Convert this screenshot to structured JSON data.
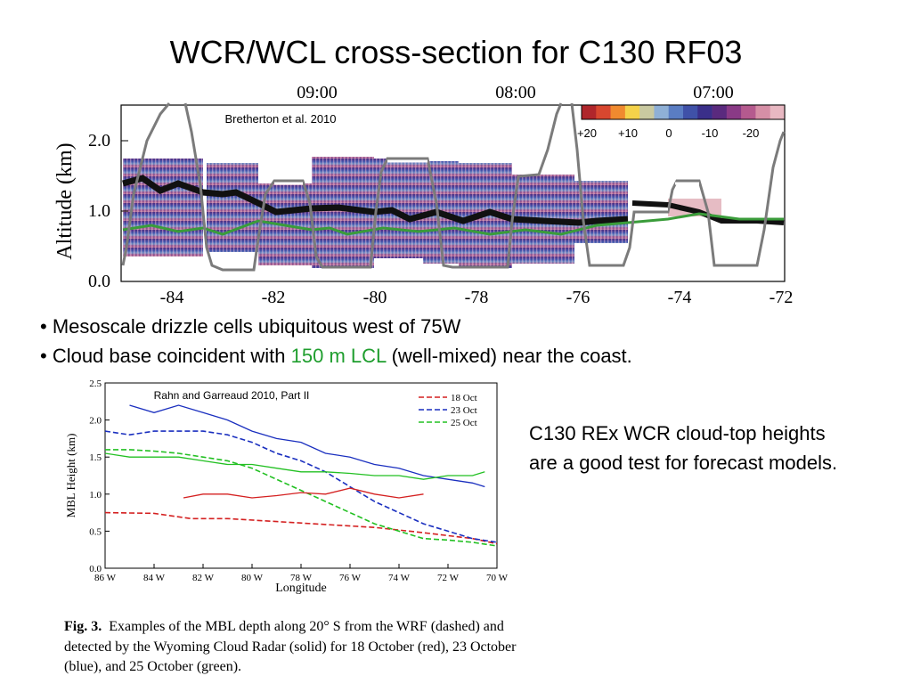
{
  "slide": {
    "title": "WCR/WCL cross-section for C130 RF03",
    "bullets": [
      {
        "prefix": "• Mesoscale drizzle cells ubiquitous west of 75W",
        "highlight": "",
        "suffix": ""
      },
      {
        "prefix": "• Cloud base coincident with ",
        "highlight": "150 m LCL",
        "suffix": " (well-mixed) near the coast."
      }
    ],
    "side_note": "C130 REx WCR cloud-top heights are a good test for forecast models.",
    "highlight_color": "#1f9e2e"
  },
  "figure_top": {
    "credit": "Bretherton et al. 2010",
    "ylabel": "Altitude (km)",
    "time_labels": [
      "09:00",
      "08:00",
      "07:00"
    ],
    "y_ticks": [
      "0.0",
      "1.0",
      "2.0"
    ],
    "x_ticks": [
      "-84",
      "-82",
      "-80",
      "-78",
      "-76",
      "-74",
      "-72"
    ],
    "colorbar_labels": [
      "+20",
      "+10",
      "0",
      "-10",
      "-20"
    ],
    "colorbar_colors": [
      "#b0262b",
      "#d8472f",
      "#f08a2f",
      "#f4d24a",
      "#c9c9a0",
      "#8fb0d6",
      "#5a7dc3",
      "#3f51a8",
      "#3a2f8a",
      "#5a2a7e",
      "#8a3a86",
      "#b55a8e",
      "#d68fa6",
      "#e8b8c2"
    ]
  },
  "figure_bottom": {
    "credit": "Rahn and Garreaud 2010, Part II",
    "ylabel": "MBL Height (km)",
    "xlabel": "Longitude",
    "y_ticks": [
      "0.0",
      "0.5",
      "1.0",
      "1.5",
      "2.0",
      "2.5"
    ],
    "x_ticks": [
      "86 W",
      "84 W",
      "82 W",
      "80 W",
      "78 W",
      "76 W",
      "74 W",
      "72 W",
      "70 W"
    ],
    "legend": [
      {
        "label": "18 Oct",
        "color": "#d42020"
      },
      {
        "label": "23 Oct",
        "color": "#1a2fbf"
      },
      {
        "label": "25 Oct",
        "color": "#22c022"
      }
    ]
  },
  "chart_data": {
    "type": "line",
    "xlabel": "Longitude",
    "ylabel": "MBL Height (km)",
    "xlim": [
      -86,
      -70
    ],
    "ylim": [
      0,
      2.5
    ],
    "series": [
      {
        "name": "18 Oct",
        "style": "dashed",
        "x": [
          -86,
          -84,
          -82.5,
          -81,
          -79,
          -77,
          -75,
          -73,
          -71,
          -70
        ],
        "values": [
          0.75,
          0.74,
          0.67,
          0.67,
          0.63,
          0.59,
          0.55,
          0.48,
          0.4,
          0.33
        ]
      },
      {
        "name": "23 Oct",
        "style": "dashed",
        "x": [
          -86,
          -85,
          -84,
          -83,
          -82,
          -81,
          -80,
          -79,
          -78,
          -77,
          -76,
          -75,
          -74,
          -73,
          -72,
          -71,
          -70
        ],
        "values": [
          1.85,
          1.8,
          1.85,
          1.85,
          1.85,
          1.8,
          1.7,
          1.55,
          1.45,
          1.3,
          1.1,
          0.9,
          0.75,
          0.6,
          0.5,
          0.4,
          0.35
        ]
      },
      {
        "name": "25 Oct",
        "style": "dashed",
        "x": [
          -86,
          -85,
          -84,
          -83,
          -82,
          -81,
          -80,
          -79,
          -78,
          -77,
          -76,
          -75,
          -74,
          -73,
          -72,
          -71,
          -70
        ],
        "values": [
          1.6,
          1.6,
          1.58,
          1.55,
          1.5,
          1.45,
          1.35,
          1.2,
          1.05,
          0.9,
          0.75,
          0.6,
          0.5,
          0.4,
          0.38,
          0.35,
          0.3
        ]
      },
      {
        "name": "18 Oct",
        "style": "solid",
        "x": [
          -82.8,
          -82,
          -81,
          -80,
          -79,
          -78,
          -77,
          -76,
          -75,
          -74,
          -73
        ],
        "values": [
          0.95,
          1.0,
          1.0,
          0.95,
          0.98,
          1.02,
          1.0,
          1.08,
          1.0,
          0.95,
          1.0
        ]
      },
      {
        "name": "23 Oct",
        "style": "solid",
        "x": [
          -85,
          -84,
          -83,
          -82,
          -81,
          -80,
          -79,
          -78,
          -77,
          -76,
          -75,
          -74,
          -73,
          -72,
          -71,
          -70.5
        ],
        "values": [
          2.2,
          2.1,
          2.2,
          2.1,
          2.0,
          1.85,
          1.75,
          1.7,
          1.55,
          1.5,
          1.4,
          1.35,
          1.25,
          1.2,
          1.15,
          1.1
        ]
      },
      {
        "name": "25 Oct",
        "style": "solid",
        "x": [
          -86,
          -85,
          -84,
          -83,
          -82,
          -81,
          -80,
          -79,
          -78,
          -77,
          -76,
          -75,
          -74,
          -73,
          -72,
          -71,
          -70.5
        ],
        "values": [
          1.55,
          1.5,
          1.5,
          1.5,
          1.45,
          1.4,
          1.4,
          1.35,
          1.3,
          1.3,
          1.28,
          1.25,
          1.25,
          1.2,
          1.25,
          1.25,
          1.3
        ]
      }
    ]
  }
}
